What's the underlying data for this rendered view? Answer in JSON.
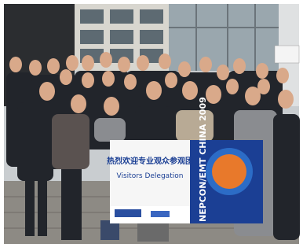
{
  "banner": {
    "title_cn": "热烈欢迎专业观众参观团",
    "title_en": "Visitors Delegation",
    "brand": "NEPCON/EMT CHINA 2009"
  }
}
